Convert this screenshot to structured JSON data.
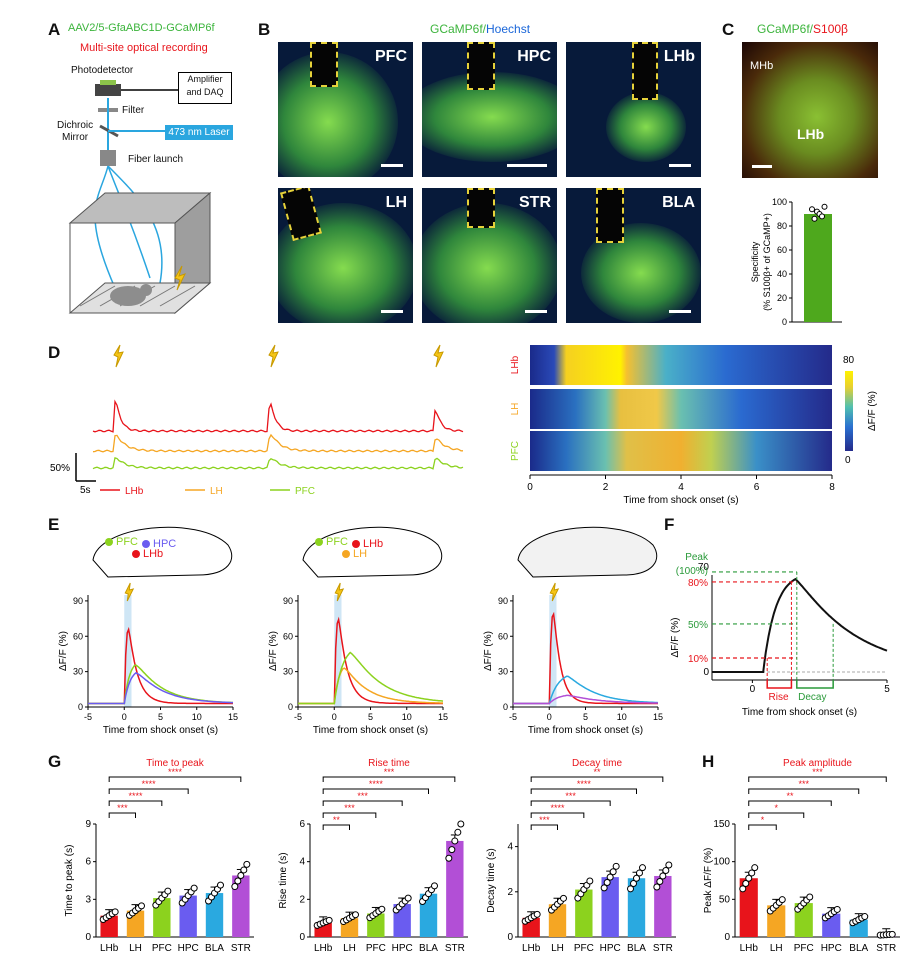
{
  "panels": {
    "A": {
      "letter": "A",
      "virus": "AAV2/5-GfaABC1D-GCaMP6f",
      "subtitle": "Multi-site optical recording",
      "photodetector": "Photodetector",
      "amplifier": "Amplifier",
      "daq": "and DAQ",
      "filter": "Filter",
      "dichroic1": "Dichroic",
      "dichroic2": "Mirror",
      "laser": "473 nm Laser",
      "fiber": "Fiber launch"
    },
    "B": {
      "letter": "B",
      "title_green": "GCaMP6f/",
      "title_blue": "Hoechst",
      "regions": [
        "PFC",
        "HPC",
        "LHb",
        "LH",
        "STR",
        "BLA"
      ]
    },
    "C": {
      "letter": "C",
      "title_green": "GCaMP6f/",
      "title_red": "S100β",
      "mhb": "MHb",
      "lhb": "LHb",
      "ylabel1": "Specificity",
      "ylabel2": "(% S100β+ of GCaMP+)",
      "yticks": [
        "0",
        "20",
        "40",
        "60",
        "80",
        "100"
      ]
    },
    "D": {
      "letter": "D",
      "scale_y": "50%",
      "scale_x": "5s",
      "legend": [
        "LHb",
        "LH",
        "PFC"
      ],
      "heat_rows": [
        "LHb",
        "LH",
        "PFC"
      ],
      "colorbar_max": "80",
      "colorbar_min": "0",
      "colorbar_label": "ΔF/F (%)",
      "xticks": [
        "0",
        "2",
        "4",
        "6",
        "8"
      ],
      "xlabel": "Time from shock onset (s)"
    },
    "E": {
      "letter": "E",
      "xlabel": "Time from shock onset (s)",
      "ylabel": "ΔF/F (%)",
      "brain1": [
        "PFC",
        "HPC",
        "LHb"
      ],
      "brain2": [
        "PFC",
        "LHb",
        "LH"
      ],
      "xticks": [
        "-5",
        "0",
        "5",
        "10",
        "15"
      ],
      "yticks1": [
        "0",
        "30",
        "60",
        "90"
      ],
      "yticks3": [
        "0",
        "30",
        "60",
        "90"
      ]
    },
    "F": {
      "letter": "F",
      "ymax": "70",
      "peak": "Peak",
      "peak100": "(100%)",
      "p80": "80%",
      "p50": "50%",
      "p10": "10%",
      "zero": "0",
      "rise": "Rise",
      "decay": "Decay",
      "ylabel": "ΔF/F (%)",
      "xticks": [
        "0",
        "5"
      ],
      "xlabel": "Time from shock onset (s)"
    },
    "G": {
      "letter": "G",
      "categories": [
        "LHb",
        "LH",
        "PFC",
        "HPC",
        "BLA",
        "STR"
      ],
      "titles": [
        "Time to peak",
        "Rise time",
        "Decay time"
      ],
      "ylabels": [
        "Time to peak (s)",
        "Rise time (s)",
        "Decay time (s)"
      ],
      "sig1": [
        "***",
        "****",
        "****",
        "****"
      ],
      "sig2": [
        "**",
        "***",
        "***",
        "****",
        "***"
      ],
      "sig3": [
        "***",
        "****",
        "***",
        "****",
        "**"
      ]
    },
    "H": {
      "letter": "H",
      "title": "Peak amplitude",
      "ylabel": "Peak ΔF/F (%)",
      "categories": [
        "LHb",
        "LH",
        "PFC",
        "HPC",
        "BLA",
        "STR"
      ],
      "sig": [
        "*",
        "*",
        "**",
        "***",
        "***"
      ]
    }
  },
  "chart_data": [
    {
      "type": "bar",
      "title": "Time to peak",
      "ylabel": "Time to peak (s)",
      "categories": [
        "LHb",
        "LH",
        "PFC",
        "HPC",
        "BLA",
        "STR"
      ],
      "values": [
        1.7,
        2.1,
        3.1,
        3.3,
        3.5,
        4.9
      ],
      "ylim": [
        0,
        9
      ],
      "yticks": [
        0,
        3,
        6,
        9
      ],
      "colors": [
        "#e8141b",
        "#f5a623",
        "#8cd21e",
        "#6a5cf0",
        "#2aa9e0",
        "#b24fd6"
      ]
    },
    {
      "type": "bar",
      "title": "Rise time",
      "ylabel": "Rise time (s)",
      "categories": [
        "LHb",
        "LH",
        "PFC",
        "HPC",
        "BLA",
        "STR"
      ],
      "values": [
        0.75,
        1.0,
        1.25,
        1.75,
        2.3,
        5.1
      ],
      "ylim": [
        0,
        6
      ],
      "yticks": [
        0,
        2,
        4,
        6
      ],
      "colors": [
        "#e8141b",
        "#f5a623",
        "#8cd21e",
        "#6a5cf0",
        "#2aa9e0",
        "#b24fd6"
      ]
    },
    {
      "type": "bar",
      "title": "Decay time",
      "ylabel": "Decay time (s)",
      "categories": [
        "LHb",
        "LH",
        "PFC",
        "HPC",
        "BLA",
        "STR"
      ],
      "values": [
        0.85,
        1.45,
        2.1,
        2.65,
        2.6,
        2.7
      ],
      "ylim": [
        0,
        5
      ],
      "yticks": [
        0,
        2,
        4
      ],
      "colors": [
        "#e8141b",
        "#f5a623",
        "#8cd21e",
        "#6a5cf0",
        "#2aa9e0",
        "#b24fd6"
      ]
    },
    {
      "type": "bar",
      "title": "Peak amplitude",
      "ylabel": "Peak ΔF/F (%)",
      "categories": [
        "LHb",
        "LH",
        "PFC",
        "HPC",
        "BLA",
        "STR"
      ],
      "values": [
        78,
        42,
        45,
        31,
        23,
        3
      ],
      "ylim": [
        0,
        150
      ],
      "yticks": [
        0,
        50,
        100,
        150
      ],
      "colors": [
        "#e8141b",
        "#f5a623",
        "#8cd21e",
        "#6a5cf0",
        "#2aa9e0",
        "#b24fd6"
      ]
    },
    {
      "type": "bar",
      "title": "",
      "ylabel": "Specificity (% S100β+ of GCaMP+)",
      "categories": [
        ""
      ],
      "values": [
        90
      ],
      "ylim": [
        0,
        100
      ],
      "colors": [
        "#4ea81d"
      ]
    }
  ]
}
